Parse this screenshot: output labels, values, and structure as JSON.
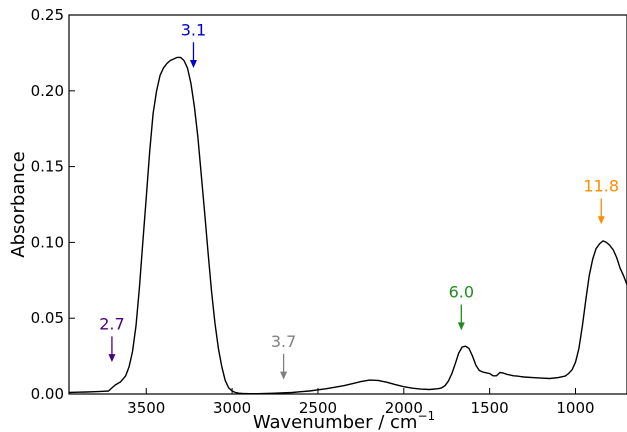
{
  "chart_data": {
    "type": "line",
    "title": "",
    "xlabel": "Wavenumber / cm",
    "xlabel_superscript": "−1",
    "ylabel": "Absorbance",
    "xlim": [
      3950,
      700
    ],
    "ylim": [
      0,
      0.25
    ],
    "x_reversed": true,
    "grid": false,
    "legend": "none",
    "xticks": [
      3500,
      3000,
      2500,
      2000,
      1500,
      1000
    ],
    "yticks": [
      0.0,
      0.05,
      0.1,
      0.15,
      0.2,
      0.25
    ],
    "xtick_labels": [
      "3500",
      "3000",
      "2500",
      "2000",
      "1500",
      "1000"
    ],
    "ytick_labels": [
      "0.00",
      "0.05",
      "0.10",
      "0.15",
      "0.20",
      "0.25"
    ],
    "series": [
      {
        "color": "#000000",
        "x": [
          3950,
          3900,
          3850,
          3800,
          3750,
          3720,
          3700,
          3680,
          3650,
          3620,
          3600,
          3580,
          3560,
          3540,
          3520,
          3500,
          3480,
          3460,
          3440,
          3420,
          3400,
          3380,
          3360,
          3340,
          3320,
          3300,
          3280,
          3260,
          3240,
          3220,
          3200,
          3180,
          3160,
          3140,
          3120,
          3100,
          3080,
          3060,
          3040,
          3020,
          3000,
          2980,
          2960,
          2940,
          2900,
          2850,
          2800,
          2750,
          2700,
          2650,
          2600,
          2550,
          2500,
          2450,
          2400,
          2350,
          2300,
          2250,
          2200,
          2150,
          2100,
          2050,
          2000,
          1950,
          1900,
          1850,
          1800,
          1780,
          1760,
          1740,
          1720,
          1700,
          1680,
          1660,
          1640,
          1620,
          1600,
          1580,
          1560,
          1540,
          1520,
          1500,
          1480,
          1460,
          1440,
          1420,
          1400,
          1380,
          1360,
          1340,
          1320,
          1300,
          1250,
          1200,
          1150,
          1100,
          1060,
          1040,
          1020,
          1000,
          980,
          960,
          940,
          920,
          900,
          880,
          860,
          840,
          820,
          800,
          780,
          760,
          740,
          720,
          700
        ],
        "y": [
          0.001,
          0.0012,
          0.0013,
          0.0015,
          0.0018,
          0.002,
          0.004,
          0.006,
          0.008,
          0.012,
          0.018,
          0.028,
          0.045,
          0.07,
          0.1,
          0.13,
          0.16,
          0.185,
          0.2,
          0.21,
          0.215,
          0.218,
          0.22,
          0.221,
          0.222,
          0.222,
          0.22,
          0.215,
          0.205,
          0.19,
          0.17,
          0.145,
          0.12,
          0.093,
          0.068,
          0.047,
          0.03,
          0.018,
          0.009,
          0.004,
          0.002,
          0.001,
          0.0005,
          0.0003,
          0.0002,
          0.0002,
          0.0003,
          0.0005,
          0.0008,
          0.001,
          0.0015,
          0.002,
          0.0028,
          0.0035,
          0.0045,
          0.0055,
          0.0068,
          0.0082,
          0.0092,
          0.009,
          0.0078,
          0.0062,
          0.0048,
          0.0038,
          0.0032,
          0.003,
          0.0035,
          0.004,
          0.0055,
          0.0085,
          0.0135,
          0.02,
          0.027,
          0.031,
          0.0315,
          0.03,
          0.025,
          0.019,
          0.0155,
          0.0145,
          0.014,
          0.0135,
          0.012,
          0.012,
          0.0142,
          0.0138,
          0.013,
          0.0125,
          0.012,
          0.0118,
          0.0115,
          0.0112,
          0.0108,
          0.0105,
          0.0102,
          0.0108,
          0.0118,
          0.0135,
          0.016,
          0.021,
          0.03,
          0.045,
          0.062,
          0.078,
          0.089,
          0.096,
          0.099,
          0.101,
          0.1,
          0.098,
          0.095,
          0.09,
          0.083,
          0.078,
          0.072
        ]
      }
    ],
    "annotations": [
      {
        "label": "2.7",
        "x": 3700,
        "y_tip": 0.021,
        "y_tail": 0.038,
        "color": "#4b0082"
      },
      {
        "label": "3.1",
        "x": 3225,
        "y_tip": 0.215,
        "y_tail": 0.232,
        "color": "#0000cd"
      },
      {
        "label": "3.7",
        "x": 2700,
        "y_tip": 0.0095,
        "y_tail": 0.0265,
        "color": "#808080"
      },
      {
        "label": "6.0",
        "x": 1665,
        "y_tip": 0.042,
        "y_tail": 0.059,
        "color": "#228b22"
      },
      {
        "label": "11.8",
        "x": 850,
        "y_tip": 0.112,
        "y_tail": 0.129,
        "color": "#ff8c00"
      }
    ]
  }
}
